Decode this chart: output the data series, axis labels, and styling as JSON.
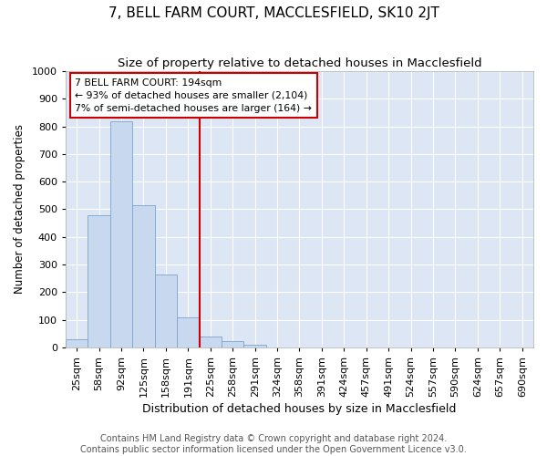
{
  "title": "7, BELL FARM COURT, MACCLESFIELD, SK10 2JT",
  "subtitle": "Size of property relative to detached houses in Macclesfield",
  "xlabel": "Distribution of detached houses by size in Macclesfield",
  "ylabel": "Number of detached properties",
  "footer_line1": "Contains HM Land Registry data © Crown copyright and database right 2024.",
  "footer_line2": "Contains public sector information licensed under the Open Government Licence v3.0.",
  "bar_labels": [
    "25sqm",
    "58sqm",
    "92sqm",
    "125sqm",
    "158sqm",
    "191sqm",
    "225sqm",
    "258sqm",
    "291sqm",
    "324sqm",
    "358sqm",
    "391sqm",
    "424sqm",
    "457sqm",
    "491sqm",
    "524sqm",
    "557sqm",
    "590sqm",
    "624sqm",
    "657sqm",
    "690sqm"
  ],
  "bar_heights": [
    30,
    480,
    820,
    515,
    265,
    110,
    40,
    22,
    10,
    0,
    0,
    0,
    0,
    0,
    0,
    0,
    0,
    0,
    0,
    0,
    0
  ],
  "bar_color": "#c8d8ef",
  "bar_edgecolor": "#7aa4cc",
  "plot_bg_color": "#dde6f4",
  "fig_bg_color": "#ffffff",
  "grid_color": "#ffffff",
  "annotation_text_line1": "7 BELL FARM COURT: 194sqm",
  "annotation_text_line2": "← 93% of detached houses are smaller (2,104)",
  "annotation_text_line3": "7% of semi-detached houses are larger (164) →",
  "vline_color": "#cc0000",
  "annotation_box_color": "#cc0000",
  "ylim": [
    0,
    1000
  ],
  "yticks": [
    0,
    100,
    200,
    300,
    400,
    500,
    600,
    700,
    800,
    900,
    1000
  ],
  "title_fontsize": 11,
  "subtitle_fontsize": 9.5,
  "xlabel_fontsize": 9,
  "ylabel_fontsize": 8.5,
  "tick_fontsize": 8,
  "footer_fontsize": 7
}
